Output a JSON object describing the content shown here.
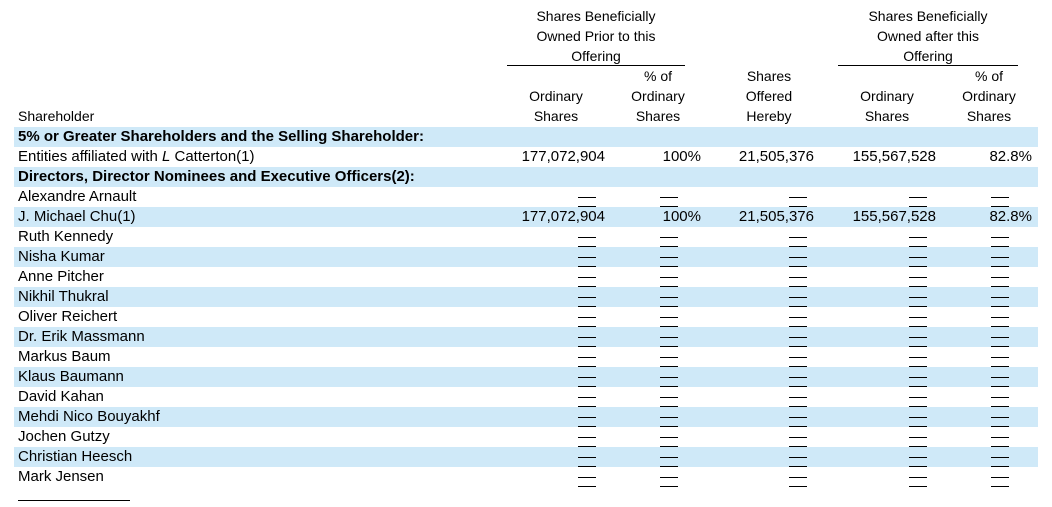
{
  "header": {
    "group_prior": [
      "Shares Beneficially",
      "Owned  Prior to this",
      "Offering"
    ],
    "group_after": [
      "Shares Beneficially",
      "Owned  after this",
      "Offering"
    ],
    "col_shareholder": "Shareholder",
    "col_ord_prior": [
      "Ordinary",
      "Shares"
    ],
    "col_pct_prior": [
      "% of",
      "Ordinary",
      "Shares"
    ],
    "col_offered": [
      "Shares",
      "Offered",
      "Hereby"
    ],
    "col_ord_after": [
      "Ordinary",
      "Shares"
    ],
    "col_pct_after": [
      "% of",
      "Ordinary",
      "Shares"
    ]
  },
  "rows": [
    {
      "name": "5% or Greater Shareholders and the Selling Shareholder:",
      "section": true
    },
    {
      "name": "Entities affiliated with ",
      "name_italic": "L",
      "name_suffix": " Catterton(1)",
      "ord_prior": "177,072,904",
      "pct_prior": "100%",
      "offered": "21,505,376",
      "ord_after": "155,567,528",
      "pct_after": "82.8%"
    },
    {
      "name": "Directors, Director Nominees and Executive Officers(2):",
      "section": true
    },
    {
      "name": "Alexandre Arnault",
      "dash": true
    },
    {
      "name": "J. Michael Chu(1)",
      "ord_prior": "177,072,904",
      "pct_prior": "100%",
      "offered": "21,505,376",
      "ord_after": "155,567,528",
      "pct_after": "82.8%"
    },
    {
      "name": "Ruth Kennedy",
      "dash": true
    },
    {
      "name": "Nisha Kumar",
      "dash": true
    },
    {
      "name": "Anne Pitcher",
      "dash": true
    },
    {
      "name": "Nikhil Thukral",
      "dash": true
    },
    {
      "name": "Oliver Reichert",
      "dash": true
    },
    {
      "name": "Dr. Erik Massmann",
      "dash": true
    },
    {
      "name": "Markus Baum",
      "dash": true
    },
    {
      "name": "Klaus Baumann",
      "dash": true
    },
    {
      "name": "David Kahan",
      "dash": true
    },
    {
      "name": "Mehdi Nico Bouyakhf",
      "dash": true
    },
    {
      "name": "Jochen Gutzy",
      "dash": true
    },
    {
      "name": "Christian Heesch",
      "dash": true
    },
    {
      "name": "Mark Jensen",
      "dash": true
    }
  ]
}
